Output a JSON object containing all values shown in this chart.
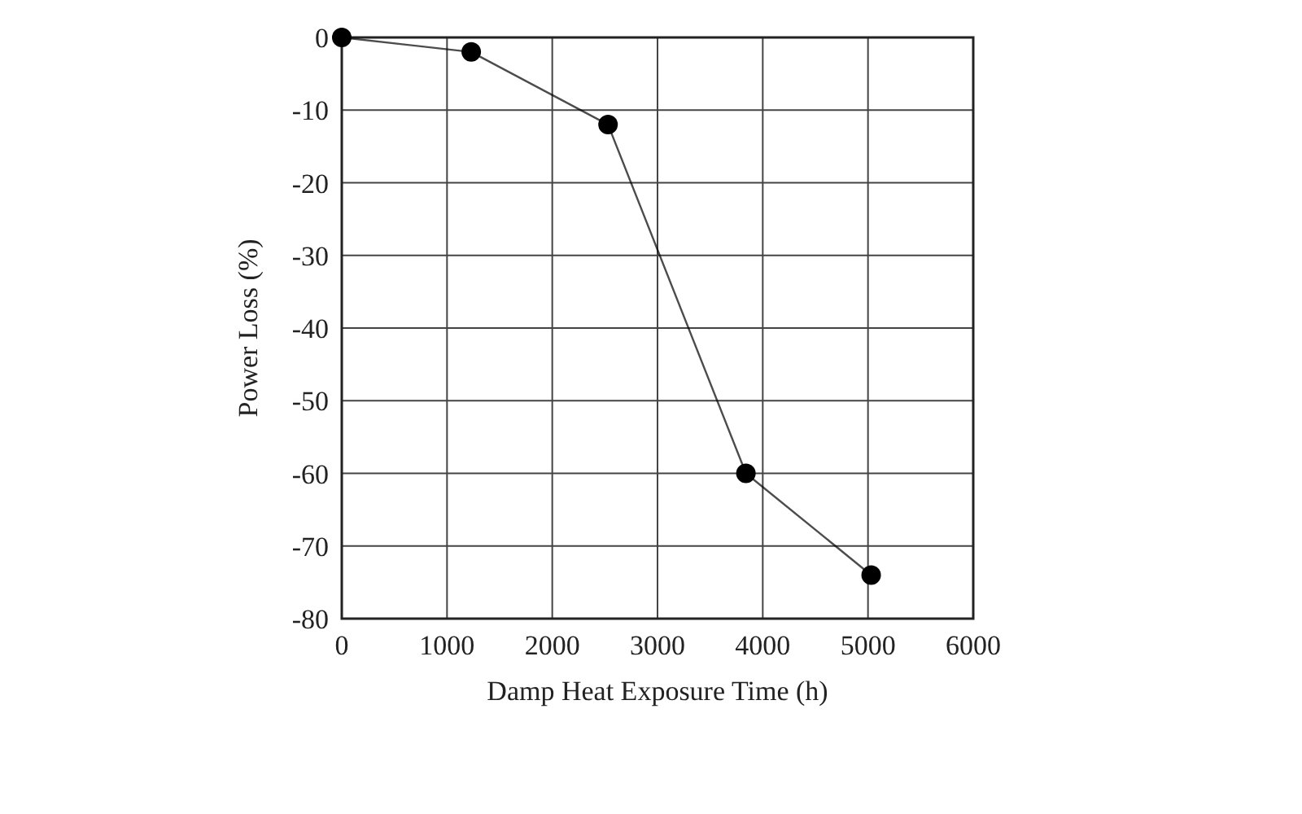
{
  "chart_data": {
    "type": "line",
    "xlabel": "Damp Heat Exposure Time (h)",
    "ylabel": "Power Loss (%)",
    "x": [
      0,
      1230,
      2530,
      3840,
      5030
    ],
    "series": [
      {
        "color": "#000000",
        "values": [
          0,
          -2,
          -12,
          -60,
          -74
        ]
      }
    ],
    "xlim": [
      0,
      6000
    ],
    "xticks": [
      0,
      1000,
      2000,
      3000,
      4000,
      5000,
      6000
    ],
    "ylim": [
      -80,
      0
    ],
    "yticks": [
      0,
      -10,
      -20,
      -30,
      -40,
      -50,
      -60,
      -70,
      -80
    ],
    "grid": true,
    "marker": "circle",
    "line_style": "solid"
  }
}
